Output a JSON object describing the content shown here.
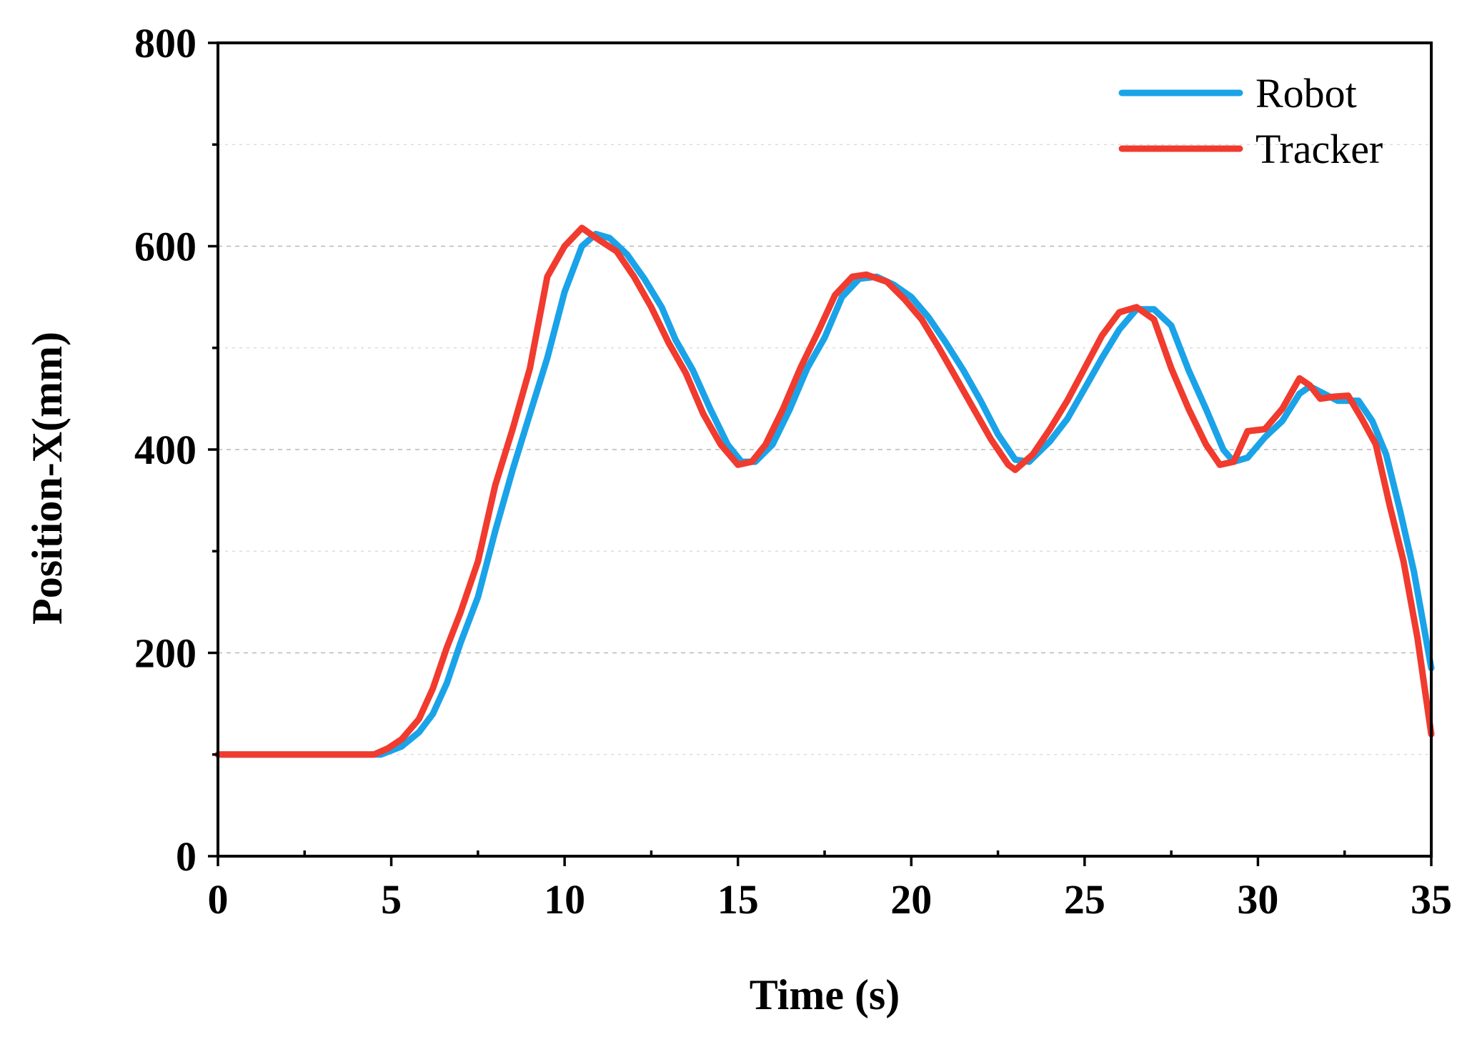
{
  "chart_data": {
    "type": "line",
    "title": "",
    "xlabel": "Time (s)",
    "ylabel": "Position-X(mm)",
    "xlim": [
      0,
      35
    ],
    "ylim": [
      0,
      800
    ],
    "x_ticks": [
      0,
      5,
      10,
      15,
      20,
      25,
      30,
      35
    ],
    "y_ticks": [
      0,
      200,
      400,
      600,
      800
    ],
    "grid": "horizontal dashed",
    "legend_position": "top-right",
    "series": [
      {
        "name": "Robot",
        "color": "#1aa3e8",
        "points": [
          [
            0,
            100
          ],
          [
            4.7,
            100
          ],
          [
            5.3,
            108
          ],
          [
            5.8,
            122
          ],
          [
            6.2,
            140
          ],
          [
            6.6,
            170
          ],
          [
            7.0,
            210
          ],
          [
            7.5,
            255
          ],
          [
            8.0,
            320
          ],
          [
            8.5,
            380
          ],
          [
            9.0,
            435
          ],
          [
            9.5,
            490
          ],
          [
            10.0,
            555
          ],
          [
            10.5,
            600
          ],
          [
            10.9,
            612
          ],
          [
            11.3,
            608
          ],
          [
            11.8,
            592
          ],
          [
            12.3,
            568
          ],
          [
            12.8,
            540
          ],
          [
            13.2,
            508
          ],
          [
            13.7,
            478
          ],
          [
            14.2,
            440
          ],
          [
            14.7,
            405
          ],
          [
            15.1,
            388
          ],
          [
            15.5,
            388
          ],
          [
            16.0,
            405
          ],
          [
            16.5,
            440
          ],
          [
            17.0,
            480
          ],
          [
            17.5,
            510
          ],
          [
            18.0,
            550
          ],
          [
            18.5,
            568
          ],
          [
            19.0,
            570
          ],
          [
            19.5,
            562
          ],
          [
            20.0,
            550
          ],
          [
            20.5,
            530
          ],
          [
            21.0,
            505
          ],
          [
            21.5,
            478
          ],
          [
            22.0,
            448
          ],
          [
            22.5,
            415
          ],
          [
            23.0,
            390
          ],
          [
            23.4,
            388
          ],
          [
            24.0,
            408
          ],
          [
            24.5,
            430
          ],
          [
            25.0,
            460
          ],
          [
            25.5,
            490
          ],
          [
            26.0,
            518
          ],
          [
            26.5,
            538
          ],
          [
            27.0,
            538
          ],
          [
            27.5,
            522
          ],
          [
            28.0,
            478
          ],
          [
            28.5,
            440
          ],
          [
            29.0,
            400
          ],
          [
            29.3,
            388
          ],
          [
            29.7,
            392
          ],
          [
            30.2,
            412
          ],
          [
            30.7,
            428
          ],
          [
            31.2,
            455
          ],
          [
            31.5,
            462
          ],
          [
            31.9,
            455
          ],
          [
            32.3,
            448
          ],
          [
            32.9,
            448
          ],
          [
            33.3,
            428
          ],
          [
            33.7,
            395
          ],
          [
            34.1,
            340
          ],
          [
            34.5,
            280
          ],
          [
            35.0,
            185
          ]
        ]
      },
      {
        "name": "Tracker",
        "color": "#f03b2e",
        "points": [
          [
            0,
            100
          ],
          [
            3.5,
            100
          ],
          [
            4.5,
            100
          ],
          [
            4.9,
            106
          ],
          [
            5.3,
            115
          ],
          [
            5.8,
            135
          ],
          [
            6.2,
            165
          ],
          [
            6.6,
            205
          ],
          [
            7.0,
            240
          ],
          [
            7.5,
            290
          ],
          [
            8.0,
            365
          ],
          [
            8.5,
            420
          ],
          [
            9.0,
            480
          ],
          [
            9.5,
            570
          ],
          [
            10.0,
            600
          ],
          [
            10.5,
            618
          ],
          [
            11.0,
            606
          ],
          [
            11.5,
            595
          ],
          [
            12.0,
            570
          ],
          [
            12.5,
            540
          ],
          [
            13.0,
            505
          ],
          [
            13.5,
            475
          ],
          [
            14.0,
            435
          ],
          [
            14.5,
            405
          ],
          [
            15.0,
            385
          ],
          [
            15.4,
            388
          ],
          [
            15.8,
            405
          ],
          [
            16.3,
            440
          ],
          [
            16.8,
            480
          ],
          [
            17.3,
            515
          ],
          [
            17.8,
            552
          ],
          [
            18.3,
            570
          ],
          [
            18.7,
            572
          ],
          [
            19.3,
            565
          ],
          [
            19.8,
            548
          ],
          [
            20.3,
            528
          ],
          [
            20.8,
            500
          ],
          [
            21.3,
            470
          ],
          [
            21.8,
            440
          ],
          [
            22.3,
            410
          ],
          [
            22.8,
            385
          ],
          [
            23.0,
            380
          ],
          [
            23.5,
            395
          ],
          [
            24.0,
            420
          ],
          [
            24.5,
            448
          ],
          [
            25.0,
            480
          ],
          [
            25.5,
            512
          ],
          [
            26.0,
            535
          ],
          [
            26.5,
            540
          ],
          [
            27.0,
            528
          ],
          [
            27.5,
            480
          ],
          [
            28.0,
            440
          ],
          [
            28.5,
            405
          ],
          [
            28.9,
            385
          ],
          [
            29.3,
            388
          ],
          [
            29.7,
            418
          ],
          [
            30.2,
            420
          ],
          [
            30.7,
            440
          ],
          [
            31.2,
            470
          ],
          [
            31.5,
            463
          ],
          [
            31.8,
            450
          ],
          [
            32.2,
            452
          ],
          [
            32.6,
            453
          ],
          [
            33.0,
            430
          ],
          [
            33.4,
            405
          ],
          [
            33.8,
            345
          ],
          [
            34.2,
            290
          ],
          [
            34.6,
            215
          ],
          [
            35.0,
            120
          ]
        ]
      }
    ]
  }
}
